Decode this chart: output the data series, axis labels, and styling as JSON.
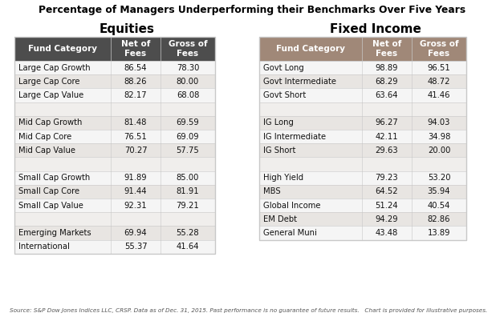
{
  "title": "Percentage of Managers Underperforming their Benchmarks Over Five Years",
  "equities_header": "Equities",
  "fixed_income_header": "Fixed Income",
  "col_headers": [
    "Fund Category",
    "Net of\nFees",
    "Gross of\nFees"
  ],
  "equities": [
    [
      "Large Cap Growth",
      "86.54",
      "78.30"
    ],
    [
      "Large Cap Core",
      "88.26",
      "80.00"
    ],
    [
      "Large Cap Value",
      "82.17",
      "68.08"
    ],
    [
      "",
      "",
      ""
    ],
    [
      "Mid Cap Growth",
      "81.48",
      "69.59"
    ],
    [
      "Mid Cap Core",
      "76.51",
      "69.09"
    ],
    [
      "Mid Cap Value",
      "70.27",
      "57.75"
    ],
    [
      "",
      "",
      ""
    ],
    [
      "Small Cap Growth",
      "91.89",
      "85.00"
    ],
    [
      "Small Cap Core",
      "91.44",
      "81.91"
    ],
    [
      "Small Cap Value",
      "92.31",
      "79.21"
    ],
    [
      "",
      "",
      ""
    ],
    [
      "Emerging Markets",
      "69.94",
      "55.28"
    ],
    [
      "International",
      "55.37",
      "41.64"
    ]
  ],
  "fixed_income": [
    [
      "Govt Long",
      "98.89",
      "96.51"
    ],
    [
      "Govt Intermediate",
      "68.29",
      "48.72"
    ],
    [
      "Govt Short",
      "63.64",
      "41.46"
    ],
    [
      "",
      "",
      ""
    ],
    [
      "IG Long",
      "96.27",
      "94.03"
    ],
    [
      "IG Intermediate",
      "42.11",
      "34.98"
    ],
    [
      "IG Short",
      "29.63",
      "20.00"
    ],
    [
      "",
      "",
      ""
    ],
    [
      "High Yield",
      "79.23",
      "53.20"
    ],
    [
      "MBS",
      "64.52",
      "35.94"
    ],
    [
      "Global Income",
      "51.24",
      "40.54"
    ],
    [
      "EM Debt",
      "94.29",
      "82.86"
    ],
    [
      "General Muni",
      "43.48",
      "13.89"
    ]
  ],
  "source_text": "Source: S&P Dow Jones Indices LLC, CRSP. Data as of Dec. 31, 2015. Past performance is no guarantee of future results.   Chart is provided for illustrative purposes.",
  "eq_header_bg": "#4d4d4d",
  "fi_header_bg": "#a08878",
  "header_text_color": "#ffffff",
  "row_light": "#f5f5f5",
  "row_mid": "#e8e5e2",
  "row_empty_color": "#f0eeec",
  "border_color": "#c8c8c8",
  "bg_color": "#ffffff",
  "section_header_color": "#000000",
  "title_color": "#000000",
  "source_color": "#555555"
}
